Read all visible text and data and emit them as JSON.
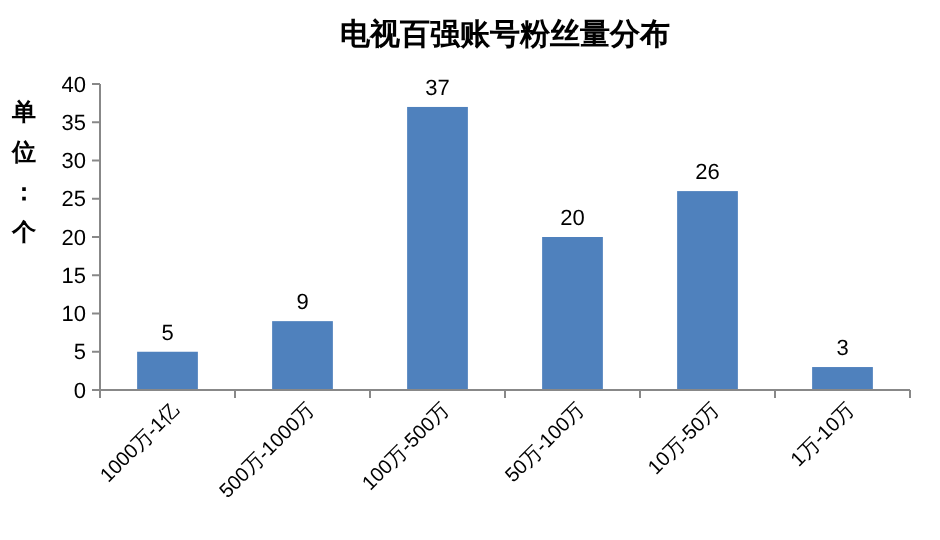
{
  "chart_data": {
    "type": "bar",
    "title": "电视百强账号粉丝量分布",
    "ylabel": "单位：个",
    "categories": [
      "1000万-1亿",
      "500万-1000万",
      "100万-500万",
      "50万-100万",
      "10万-50万",
      "1万-10万"
    ],
    "values": [
      5,
      9,
      37,
      20,
      26,
      3
    ],
    "color": "#4f81bd",
    "ylim": [
      0,
      40
    ],
    "yticks": [
      0,
      5,
      10,
      15,
      20,
      25,
      30,
      35,
      40
    ],
    "grid": false,
    "data_labels": true
  }
}
